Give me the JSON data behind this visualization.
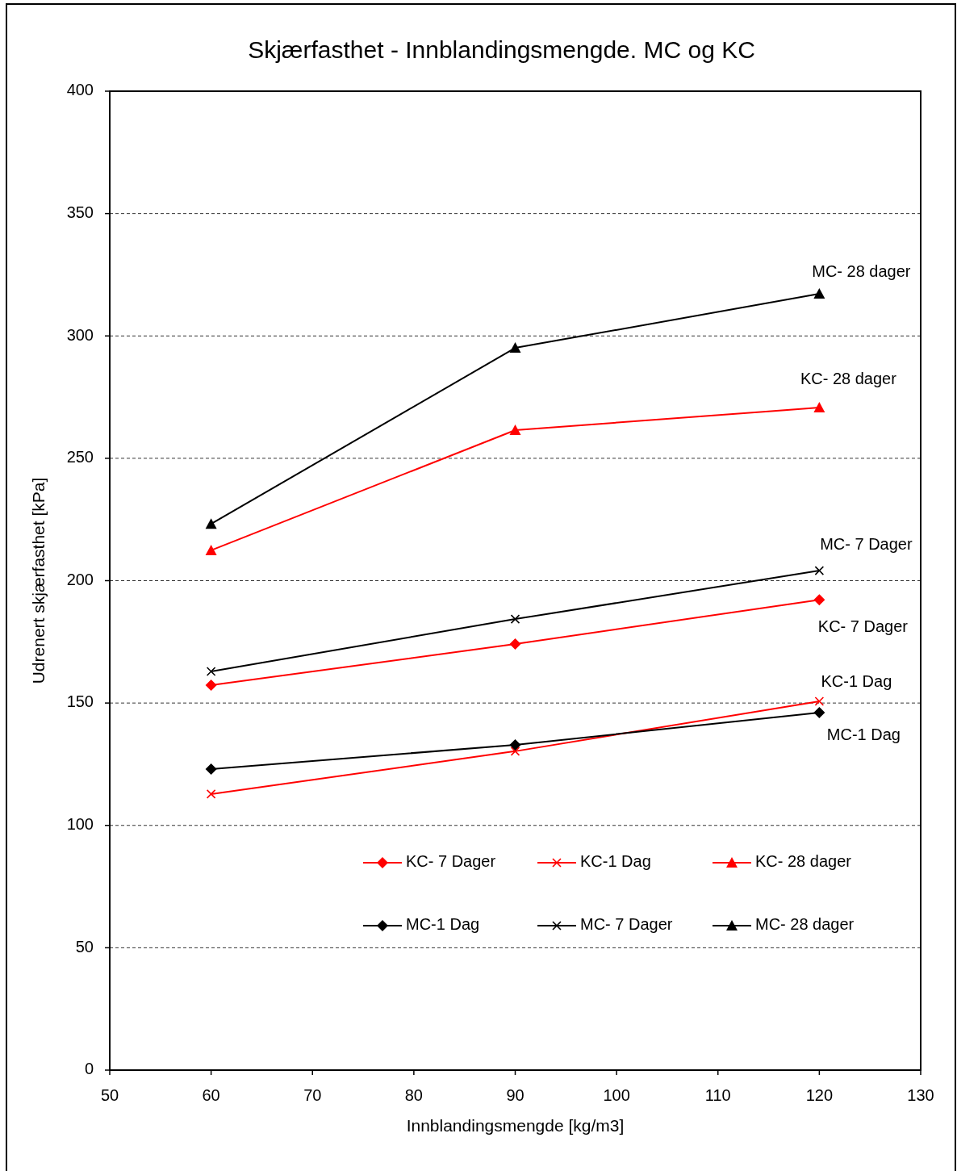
{
  "chart_data": {
    "type": "line",
    "title": "Skjærfasthet - Innblandingsmengde. MC og KC",
    "xlabel": "Innblandingsmengde [kg/m3]",
    "ylabel": "Udrenert skjærfasthet [kPa]",
    "x": [
      60,
      90,
      120
    ],
    "xlim": [
      50,
      130
    ],
    "xticks": [
      50,
      60,
      70,
      80,
      90,
      100,
      110,
      120,
      130
    ],
    "ylim": [
      0,
      400
    ],
    "yticks": [
      0,
      50,
      100,
      150,
      200,
      250,
      300,
      350,
      400
    ],
    "grid": "y",
    "legend": "bottom",
    "line_style": "solid",
    "series": [
      {
        "name": "KC- 7 Dager",
        "color": "#ff0000",
        "marker": "diamond",
        "values": [
          157.3,
          174.1,
          192.2
        ]
      },
      {
        "name": "KC-1 Dag",
        "color": "#ff0000",
        "marker": "cross",
        "values": [
          112.8,
          130.3,
          150.7
        ]
      },
      {
        "name": "KC- 28 dager",
        "color": "#ff0000",
        "marker": "triangle",
        "values": [
          212.4,
          261.5,
          270.7
        ]
      },
      {
        "name": "MC-1 Dag",
        "color": "#000000",
        "marker": "diamond",
        "values": [
          123,
          132.9,
          146.1
        ]
      },
      {
        "name": "MC- 7 Dager",
        "color": "#000000",
        "marker": "cross",
        "values": [
          162.9,
          184.3,
          204.1
        ]
      },
      {
        "name": "MC- 28 dager",
        "color": "#000000",
        "marker": "triangle",
        "values": [
          223.2,
          295.1,
          317.2
        ]
      }
    ],
    "annotations": [
      "MC- 28 dager",
      "KC- 28 dager",
      "MC- 7 Dager",
      "KC- 7 Dager",
      "KC-1 Dag",
      "MC-1 Dag"
    ]
  }
}
